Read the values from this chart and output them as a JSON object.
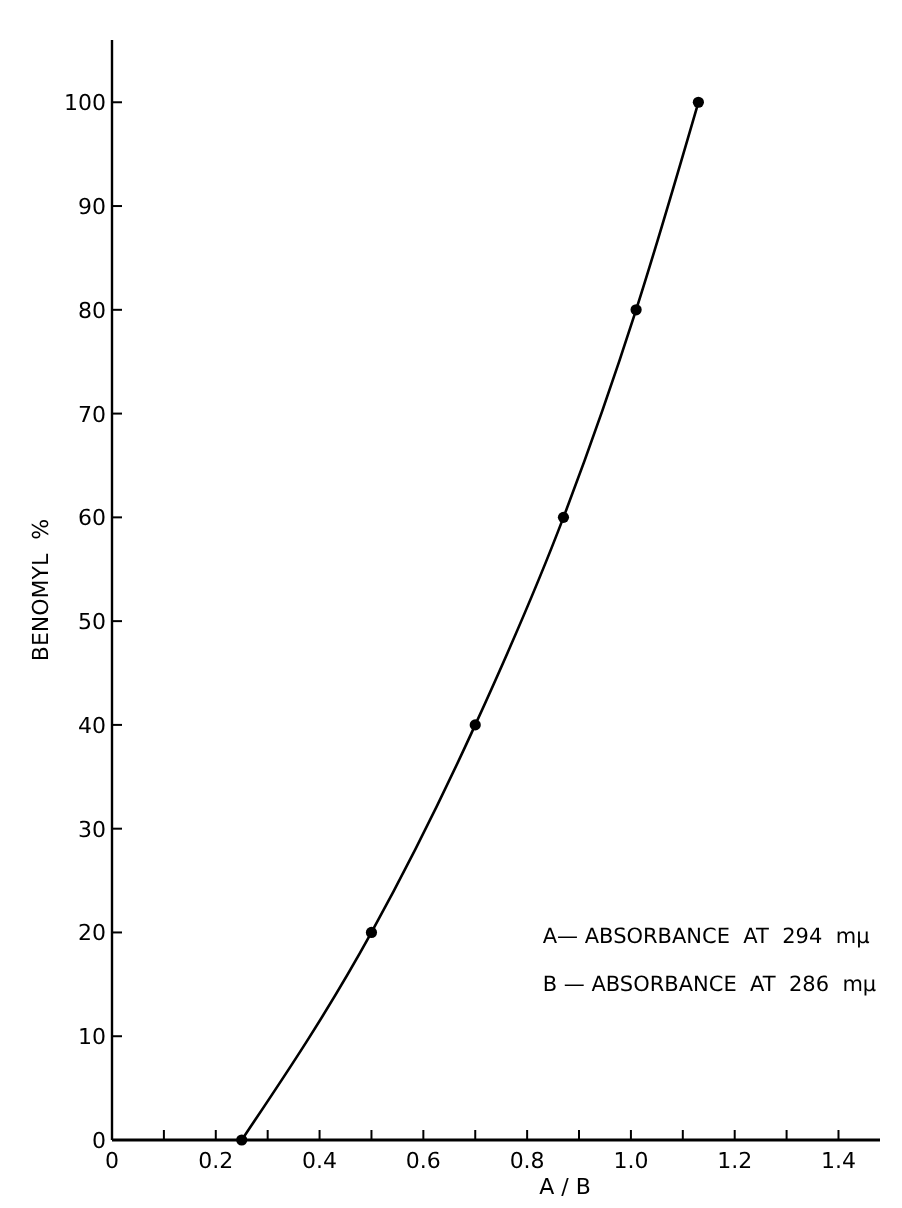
{
  "chart_data": {
    "type": "line",
    "xlabel": "A / B",
    "ylabel": "BENOMYL  %",
    "x": [
      0.25,
      0.5,
      0.7,
      0.87,
      1.01,
      1.13
    ],
    "values": [
      0,
      20,
      40,
      60,
      80,
      100
    ],
    "color": "#000000",
    "marker": "circle",
    "line_style": "solid",
    "grid": false,
    "xlim": [
      0,
      1.48
    ],
    "xticks": [
      0,
      {
        "value": 0.1,
        "label": null
      },
      0.2,
      {
        "value": 0.3,
        "label": null
      },
      0.4,
      {
        "value": 0.5,
        "label": null
      },
      0.6,
      {
        "value": 0.7,
        "label": null
      },
      0.8,
      {
        "value": 0.9,
        "label": null
      },
      {
        "value": 1.0,
        "label": "1.0"
      },
      {
        "value": 1.1,
        "label": null
      },
      1.2,
      {
        "value": 1.3,
        "label": null
      },
      1.4
    ],
    "ylim": [
      0,
      106
    ],
    "yticks": [
      0,
      10,
      20,
      30,
      40,
      50,
      60,
      70,
      80,
      90,
      100
    ],
    "annotations": [
      "A— ABSORBANCE  AT  294  mμ",
      "B — ABSORBANCE  AT  286  mμ"
    ]
  }
}
